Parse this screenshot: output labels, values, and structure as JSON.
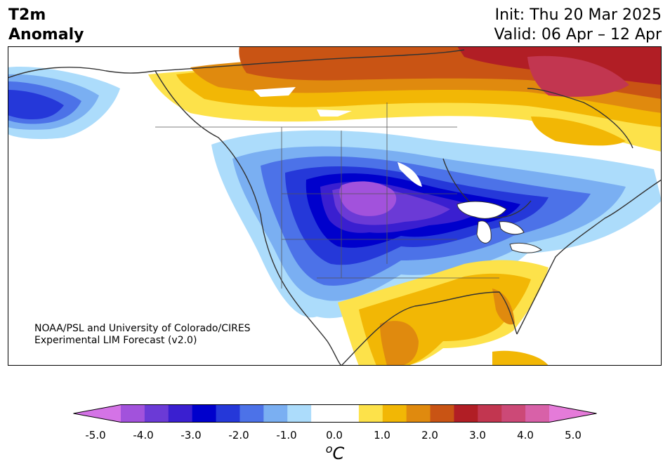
{
  "title": {
    "line1": "T2m",
    "line2": "Anomaly"
  },
  "init": "Init: Thu 20 Mar 2025",
  "valid": "Valid: 06 Apr – 12 Apr",
  "credit": {
    "line1": "NOAA/PSL and University of Colorado/CIRES",
    "line2": "Experimental LIM Forecast (v2.0)"
  },
  "colorbar": {
    "ticks": [
      "-5.0",
      "-4.0",
      "-3.0",
      "-2.0",
      "-1.0",
      "0.0",
      "1.0",
      "2.0",
      "3.0",
      "4.0",
      "5.0"
    ],
    "units_symbol": "o",
    "units_letter": "C",
    "colors": [
      "#d473e6",
      "#a252dc",
      "#6b3ad6",
      "#3a1fd0",
      "#0000cc",
      "#2538d9",
      "#4c72e8",
      "#7aaff2",
      "#acdcfb",
      "#ffffff",
      "#ffffff",
      "#fde24a",
      "#f2b705",
      "#e08a0e",
      "#c95414",
      "#b11e25",
      "#c23650",
      "#cc4977",
      "#d861a8",
      "#e57bd9"
    ]
  }
}
